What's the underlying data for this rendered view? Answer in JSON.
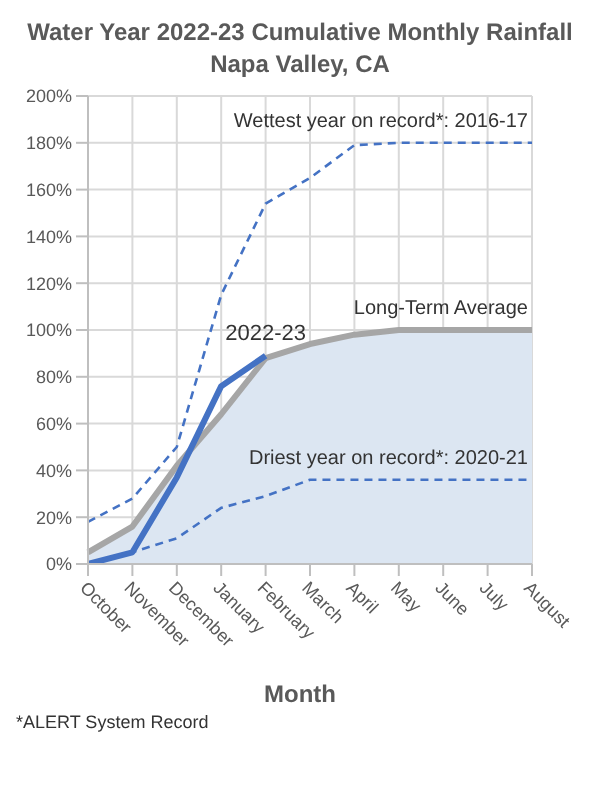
{
  "chart_data": {
    "type": "line",
    "title": "Water Year 2022-23 Cumulative Monthly Rainfall",
    "subtitle": "Napa Valley, CA",
    "xlabel": "Month",
    "categories": [
      "October",
      "November",
      "December",
      "January",
      "February",
      "March",
      "April",
      "May",
      "June",
      "July",
      "August"
    ],
    "series": [
      {
        "name": "Long-Term Average",
        "type": "area",
        "color": "#dce6f2",
        "values": [
          5,
          16,
          42,
          64,
          88,
          94,
          98,
          100,
          100,
          100,
          100
        ]
      },
      {
        "name": "Wettest year on record*: 2016-17",
        "color": "#4472c4",
        "line_style": "dashed",
        "values": [
          18,
          28,
          50,
          115,
          154,
          165,
          179,
          180,
          180,
          180,
          180
        ]
      },
      {
        "name": "Driest year on record*: 2020-21",
        "color": "#4472c4",
        "line_style": "dashed",
        "values": [
          0,
          5,
          11,
          24,
          29,
          36,
          36,
          36,
          36,
          36,
          36
        ]
      },
      {
        "name": "2022-23",
        "color": "#4472c4",
        "line_style": "solid",
        "values": [
          0,
          5,
          37,
          76,
          89,
          null,
          null,
          null,
          null,
          null,
          null
        ]
      }
    ],
    "ylim": [
      0,
      200
    ],
    "yticks": [
      {
        "value": 0,
        "label": "0%"
      },
      {
        "value": 20,
        "label": "20%"
      },
      {
        "value": 40,
        "label": "40%"
      },
      {
        "value": 60,
        "label": "60%"
      },
      {
        "value": 80,
        "label": "80%"
      },
      {
        "value": 100,
        "label": "100%"
      },
      {
        "value": 120,
        "label": "120%"
      },
      {
        "value": 140,
        "label": "140%"
      },
      {
        "value": 160,
        "label": "160%"
      },
      {
        "value": 180,
        "label": "180%"
      },
      {
        "value": 200,
        "label": "200%"
      }
    ],
    "grid": true,
    "marker": "none",
    "annotations": [
      "*ALERT System Record"
    ]
  }
}
